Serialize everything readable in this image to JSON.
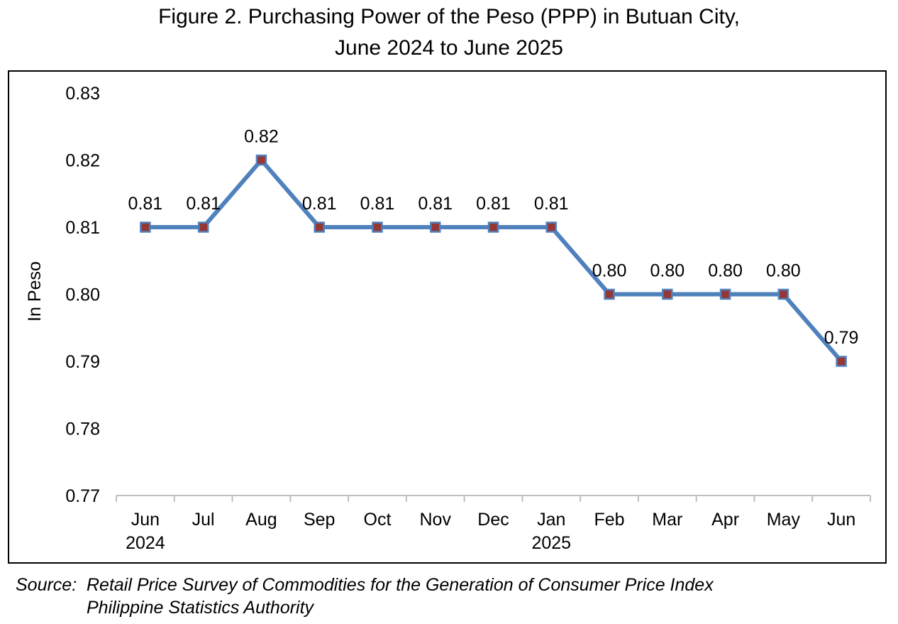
{
  "chart_data": {
    "type": "line",
    "title_line1": "Figure 2. Purchasing Power of the Peso (PPP) in Butuan City,",
    "title_line2": "June 2024 to June 2025",
    "ylabel": "In Peso",
    "ylim": [
      0.77,
      0.83
    ],
    "yticks": [
      "0.83",
      "0.82",
      "0.81",
      "0.80",
      "0.79",
      "0.78",
      "0.77"
    ],
    "categories": [
      {
        "month": "Jun",
        "year": "2024"
      },
      {
        "month": "Jul",
        "year": ""
      },
      {
        "month": "Aug",
        "year": ""
      },
      {
        "month": "Sep",
        "year": ""
      },
      {
        "month": "Oct",
        "year": ""
      },
      {
        "month": "Nov",
        "year": ""
      },
      {
        "month": "Dec",
        "year": ""
      },
      {
        "month": "Jan",
        "year": "2025"
      },
      {
        "month": "Feb",
        "year": ""
      },
      {
        "month": "Mar",
        "year": ""
      },
      {
        "month": "Apr",
        "year": ""
      },
      {
        "month": "May",
        "year": ""
      },
      {
        "month": "Jun",
        "year": ""
      }
    ],
    "series": [
      {
        "values": [
          0.81,
          0.81,
          0.82,
          0.81,
          0.81,
          0.81,
          0.81,
          0.81,
          0.8,
          0.8,
          0.8,
          0.8,
          0.79
        ],
        "data_labels": [
          "0.81",
          "0.81",
          "0.82",
          "0.81",
          "0.81",
          "0.81",
          "0.81",
          "0.81",
          "0.80",
          "0.80",
          "0.80",
          "0.80",
          "0.79"
        ]
      }
    ],
    "colors": {
      "line": "#4f81bd",
      "marker_fill": "#953735",
      "marker_border": "#4f81bd"
    },
    "grid": false
  },
  "source": {
    "label": "Source:",
    "line1": "Retail Price Survey of Commodities for the Generation of Consumer Price Index",
    "line2": "Philippine Statistics Authority"
  }
}
